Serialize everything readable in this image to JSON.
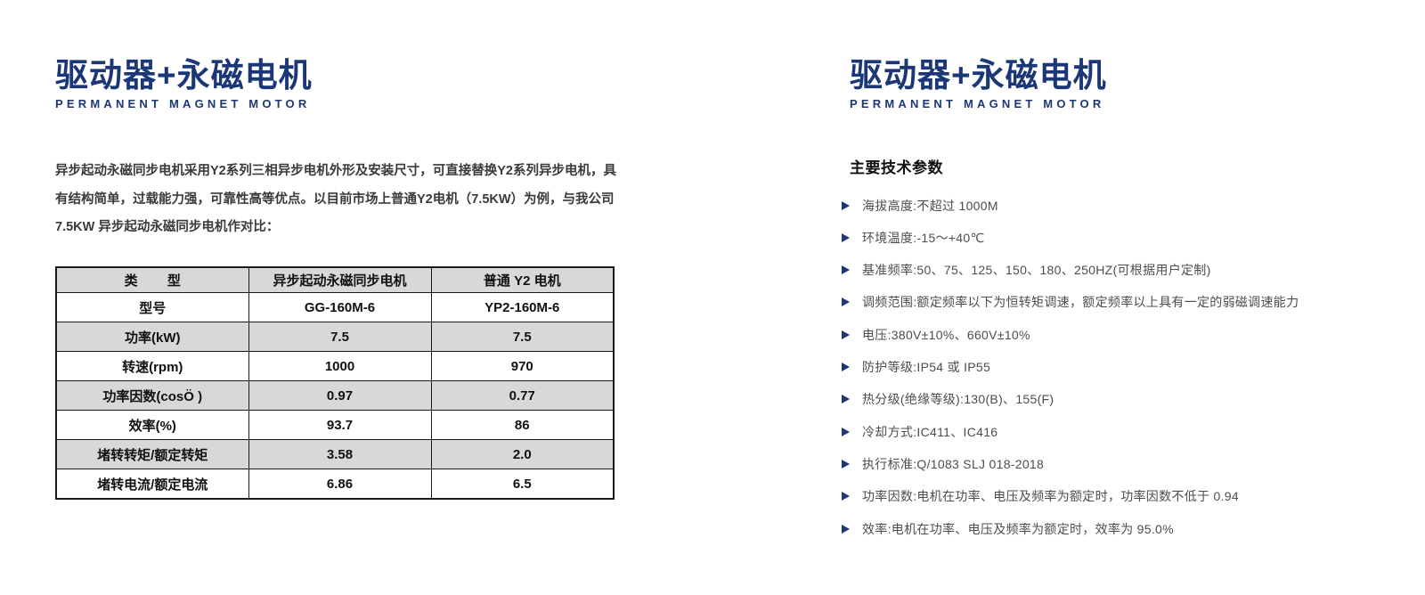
{
  "left": {
    "title": "驱动器+永磁电机",
    "subtitle": "PERMANENT MAGNET MOTOR",
    "paragraph_lines": [
      "异步起动永磁同步电机采用Y2系列三相异步电机外形及安装尺寸，可直接替换Y2系列异步电机，具",
      "有结构简单，过载能力强，可靠性高等优点。以目前市场上普通Y2电机（7.5KW）为例，与我公司",
      "7.5KW 异步起动永磁同步电机作对比："
    ],
    "table": {
      "headers": [
        "类        型",
        "异步起动永磁同步电机",
        "普通 Y2 电机"
      ],
      "rows": [
        [
          "型号",
          "GG-160M-6",
          "YP2-160M-6"
        ],
        [
          "功率(kW)",
          "7.5",
          "7.5"
        ],
        [
          "转速(rpm)",
          "1000",
          "970"
        ],
        [
          "功率因数(cosÖ )",
          "0.97",
          "0.77"
        ],
        [
          "效率(%)",
          "93.7",
          "86"
        ],
        [
          "堵转转矩/额定转矩",
          "3.58",
          "2.0"
        ],
        [
          "堵转电流/额定电流",
          "6.86",
          "6.5"
        ]
      ]
    }
  },
  "right": {
    "title": "驱动器+永磁电机",
    "subtitle": "PERMANENT MAGNET MOTOR",
    "section_heading": "主要技术参数",
    "spec_items": [
      "海拔高度:不超过 1000M",
      "环境温度:-15～+40℃",
      "基准频率:50、75、125、150、180、250HZ(可根据用户定制)",
      "调频范围:额定频率以下为恒转矩调速，额定频率以上具有一定的弱磁调速能力",
      "电压:380V±10%、660V±10%",
      "防护等级:IP54 或 IP55",
      "热分级(绝缘等级):130(B)、155(F)",
      "冷却方式:IC411、IC416",
      "执行标准:Q/1083 SLJ 018-2018",
      "功率因数:电机在功率、电压及频率为额定时，功率因数不低于 0.94",
      "效率:电机在功率、电压及频率为额定时，效率为 95.0%"
    ]
  },
  "colors": {
    "brand_navy": "#1b3778",
    "table_row_gray": "#d8d8d8",
    "table_border": "#1a1a1a"
  }
}
